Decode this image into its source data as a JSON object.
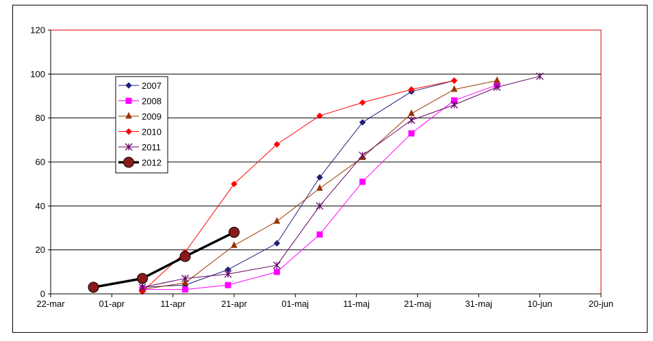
{
  "chart_data": {
    "type": "line",
    "title": "",
    "xlabel": "",
    "ylabel": "",
    "ylim": [
      0,
      120
    ],
    "yticks": [
      0,
      20,
      40,
      60,
      80,
      100,
      120
    ],
    "xlim": [
      "2012-03-22",
      "2012-06-20"
    ],
    "xticks": [
      {
        "date": "2012-03-22",
        "label": "22-mar"
      },
      {
        "date": "2012-04-01",
        "label": "01-apr"
      },
      {
        "date": "2012-04-11",
        "label": "11-apr"
      },
      {
        "date": "2012-04-21",
        "label": "21-apr"
      },
      {
        "date": "2012-05-01",
        "label": "01-maj"
      },
      {
        "date": "2012-05-11",
        "label": "11-maj"
      },
      {
        "date": "2012-05-21",
        "label": "21-maj"
      },
      {
        "date": "2012-05-31",
        "label": "31-maj"
      },
      {
        "date": "2012-06-10",
        "label": "10-jun"
      },
      {
        "date": "2012-06-20",
        "label": "20-jun"
      }
    ],
    "grid": "horizontal",
    "legend_position": "top-left",
    "plot_border_color": "#E00000",
    "series": [
      {
        "name": "2007",
        "color": "#1F1F7A",
        "marker": "diamond",
        "width": 1,
        "points": [
          [
            "2012-04-06",
            3
          ],
          [
            "2012-04-13",
            4
          ],
          [
            "2012-04-20",
            11
          ],
          [
            "2012-04-28",
            23
          ],
          [
            "2012-05-05",
            53
          ],
          [
            "2012-05-12",
            78
          ],
          [
            "2012-05-20",
            92
          ],
          [
            "2012-05-27",
            97
          ]
        ]
      },
      {
        "name": "2008",
        "color": "#FF00FF",
        "marker": "square",
        "width": 1,
        "points": [
          [
            "2012-04-06",
            2
          ],
          [
            "2012-04-13",
            2
          ],
          [
            "2012-04-20",
            4
          ],
          [
            "2012-04-28",
            10
          ],
          [
            "2012-05-05",
            27
          ],
          [
            "2012-05-12",
            51
          ],
          [
            "2012-05-20",
            73
          ],
          [
            "2012-05-27",
            88
          ],
          [
            "2012-06-03",
            95
          ]
        ]
      },
      {
        "name": "2009",
        "color": "#993300",
        "marker": "triangle",
        "width": 1,
        "points": [
          [
            "2012-04-06",
            2
          ],
          [
            "2012-04-13",
            5
          ],
          [
            "2012-04-21",
            22
          ],
          [
            "2012-04-28",
            33
          ],
          [
            "2012-05-05",
            48
          ],
          [
            "2012-05-12",
            62
          ],
          [
            "2012-05-20",
            82
          ],
          [
            "2012-05-27",
            93
          ],
          [
            "2012-06-03",
            97
          ]
        ]
      },
      {
        "name": "2010",
        "color": "#FF0000",
        "marker": "diamond",
        "width": 1,
        "points": [
          [
            "2012-04-06",
            1
          ],
          [
            "2012-04-13",
            19
          ],
          [
            "2012-04-21",
            50
          ],
          [
            "2012-04-28",
            68
          ],
          [
            "2012-05-05",
            81
          ],
          [
            "2012-05-12",
            87
          ],
          [
            "2012-05-20",
            93
          ],
          [
            "2012-05-27",
            97
          ]
        ]
      },
      {
        "name": "2011",
        "color": "#660066",
        "marker": "star",
        "width": 1,
        "points": [
          [
            "2012-04-06",
            3
          ],
          [
            "2012-04-13",
            7
          ],
          [
            "2012-04-20",
            9
          ],
          [
            "2012-04-28",
            13
          ],
          [
            "2012-05-05",
            40
          ],
          [
            "2012-05-12",
            63
          ],
          [
            "2012-05-20",
            79
          ],
          [
            "2012-05-27",
            86
          ],
          [
            "2012-06-03",
            94
          ],
          [
            "2012-06-10",
            99
          ]
        ]
      },
      {
        "name": "2012",
        "color": "#000000",
        "marker": "circle",
        "marker_color": "#8B1A1A",
        "width": 3.5,
        "points": [
          [
            "2012-03-29",
            3
          ],
          [
            "2012-04-06",
            7
          ],
          [
            "2012-04-13",
            17
          ],
          [
            "2012-04-21",
            28
          ]
        ]
      }
    ]
  }
}
